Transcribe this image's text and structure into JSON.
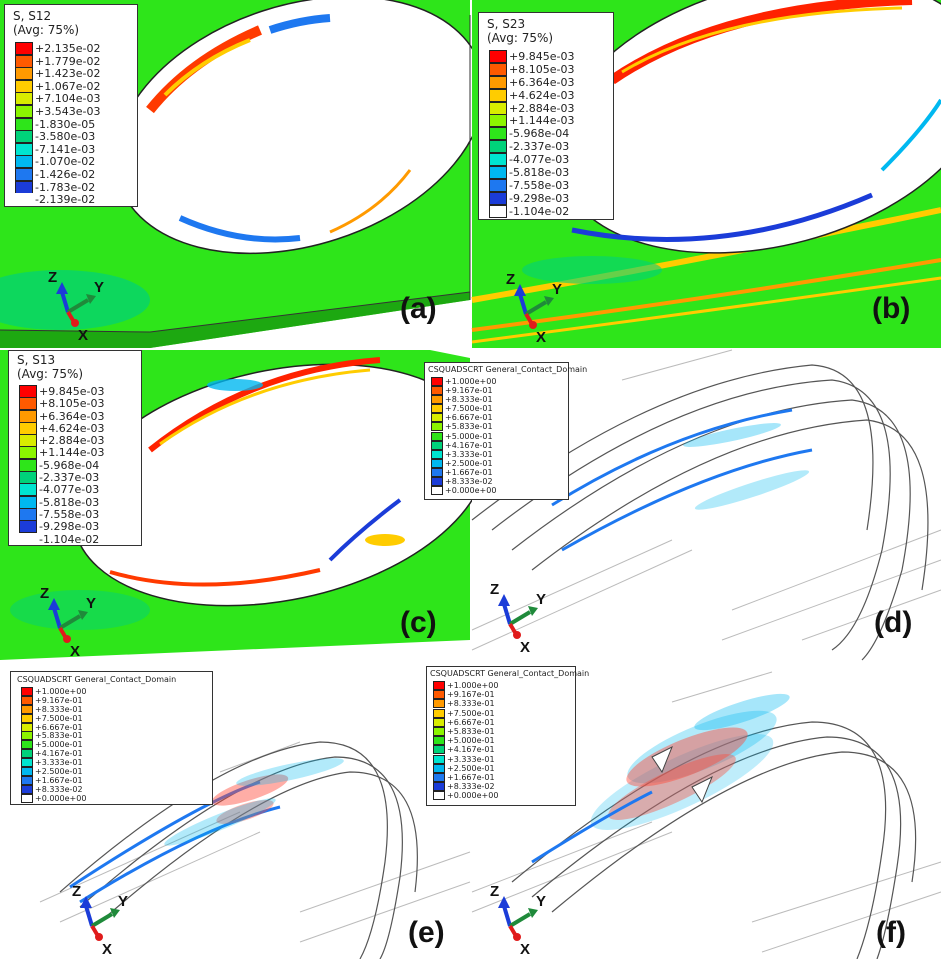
{
  "panels": {
    "a": {
      "label": "(a)",
      "legend_title": [
        "S, S12",
        "(Avg: 75%)"
      ],
      "values": [
        "+2.135e-02",
        "+1.779e-02",
        "+1.423e-02",
        "+1.067e-02",
        "+7.104e-03",
        "+3.543e-03",
        "-1.830e-05",
        "-3.580e-03",
        "-7.141e-03",
        "-1.070e-02",
        "-1.426e-02",
        "-1.783e-02",
        "-2.139e-02"
      ]
    },
    "b": {
      "label": "(b)",
      "legend_title": [
        "S, S23",
        "(Avg: 75%)"
      ],
      "values": [
        "+9.845e-03",
        "+8.105e-03",
        "+6.364e-03",
        "+4.624e-03",
        "+2.884e-03",
        "+1.144e-03",
        "-5.968e-04",
        "-2.337e-03",
        "-4.077e-03",
        "-5.818e-03",
        "-7.558e-03",
        "-9.298e-03",
        "-1.104e-02"
      ]
    },
    "c": {
      "label": "(c)",
      "legend_title": [
        "S, S13",
        "(Avg: 75%)"
      ],
      "values": [
        "+9.845e-03",
        "+8.105e-03",
        "+6.364e-03",
        "+4.624e-03",
        "+2.884e-03",
        "+1.144e-03",
        "-5.968e-04",
        "-2.337e-03",
        "-4.077e-03",
        "-5.818e-03",
        "-7.558e-03",
        "-9.298e-03",
        "-1.104e-02"
      ]
    },
    "d": {
      "label": "(d)",
      "legend_title": [
        "CSQUADSCRT General_Contact_Domain"
      ],
      "values": [
        "+1.000e+00",
        "+9.167e-01",
        "+8.333e-01",
        "+7.500e-01",
        "+6.667e-01",
        "+5.833e-01",
        "+5.000e-01",
        "+4.167e-01",
        "+3.333e-01",
        "+2.500e-01",
        "+1.667e-01",
        "+8.333e-02",
        "+0.000e+00"
      ]
    },
    "e": {
      "label": "(e)",
      "legend_title": [
        "CSQUADSCRT General_Contact_Domain"
      ],
      "values": [
        "+1.000e+00",
        "+9.167e-01",
        "+8.333e-01",
        "+7.500e-01",
        "+6.667e-01",
        "+5.833e-01",
        "+5.000e-01",
        "+4.167e-01",
        "+3.333e-01",
        "+2.500e-01",
        "+1.667e-01",
        "+8.333e-02",
        "+0.000e+00"
      ]
    },
    "f": {
      "label": "(f)",
      "legend_title": [
        "CSQUADSCRT General_Contact_Domain"
      ],
      "values": [
        "+1.000e+00",
        "+9.167e-01",
        "+8.333e-01",
        "+7.500e-01",
        "+6.667e-01",
        "+5.833e-01",
        "+5.000e-01",
        "+4.167e-01",
        "+3.333e-01",
        "+2.500e-01",
        "+1.667e-01",
        "+8.333e-02",
        "+0.000e+00"
      ]
    }
  },
  "axes": {
    "z": "Z",
    "y": "Y",
    "x": "X"
  },
  "colors": {
    "scale": [
      "#ff0000",
      "#ff5a00",
      "#ff9a00",
      "#ffcc00",
      "#d9ec00",
      "#8cf500",
      "#2ee51a",
      "#00d27a",
      "#00e5d0",
      "#00b8f0",
      "#1e78f0",
      "#1b3cd8",
      "#ffffff"
    ],
    "plate_green": "#2ee51a",
    "axis_z": "#1b3cd8",
    "axis_y": "#1f8a3a",
    "axis_x": "#e01b1b"
  }
}
